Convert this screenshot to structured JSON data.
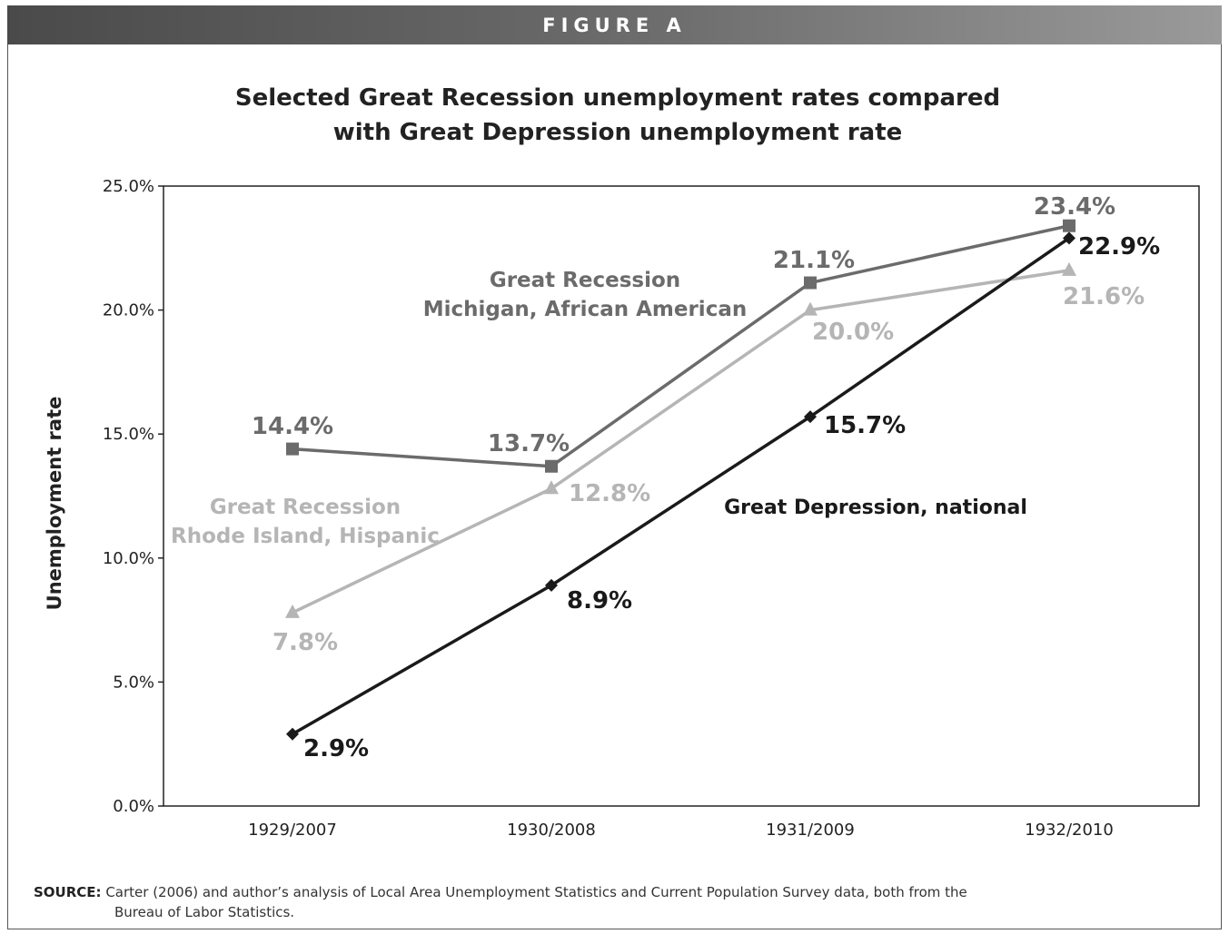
{
  "figure_label": "FIGURE A",
  "source": {
    "label": "SOURCE:",
    "line1": "Carter (2006) and author’s analysis of Local Area Unemployment Statistics and Current Population Survey data, both from the",
    "line2": "Bureau of Labor Statistics."
  },
  "colors": {
    "banner": "#5a5a5a",
    "national": "#1a1a1a",
    "michigan": "#6b6b6b",
    "rhode_island": "#b5b5b5"
  },
  "chart_data": {
    "type": "line",
    "title": [
      "Selected Great Recession unemployment rates compared",
      "with Great Depression unemployment rate"
    ],
    "xlabel": "",
    "ylabel": "Unemployment rate",
    "categories": [
      "1929/2007",
      "1930/2008",
      "1931/2009",
      "1932/2010"
    ],
    "ylim": [
      0,
      25
    ],
    "yticks": [
      "0.0%",
      "5.0%",
      "10.0%",
      "15.0%",
      "20.0%",
      "25.0%"
    ],
    "grid": false,
    "series": [
      {
        "id": "michigan",
        "name": [
          "Great Recession",
          "Michigan, African American"
        ],
        "marker": "square",
        "values": [
          14.4,
          13.7,
          21.1,
          23.4
        ],
        "labels": [
          "14.4%",
          "13.7%",
          "21.1%",
          "23.4%"
        ]
      },
      {
        "id": "rhode_island",
        "name": [
          "Great Recession",
          "Rhode Island, Hispanic"
        ],
        "marker": "triangle",
        "values": [
          7.8,
          12.8,
          20.0,
          21.6
        ],
        "labels": [
          "7.8%",
          "12.8%",
          "20.0%",
          "21.6%"
        ]
      },
      {
        "id": "national",
        "name": [
          "Great Depression, national"
        ],
        "marker": "diamond",
        "values": [
          2.9,
          8.9,
          15.7,
          22.9
        ],
        "labels": [
          "2.9%",
          "8.9%",
          "15.7%",
          "22.9%"
        ]
      }
    ]
  }
}
